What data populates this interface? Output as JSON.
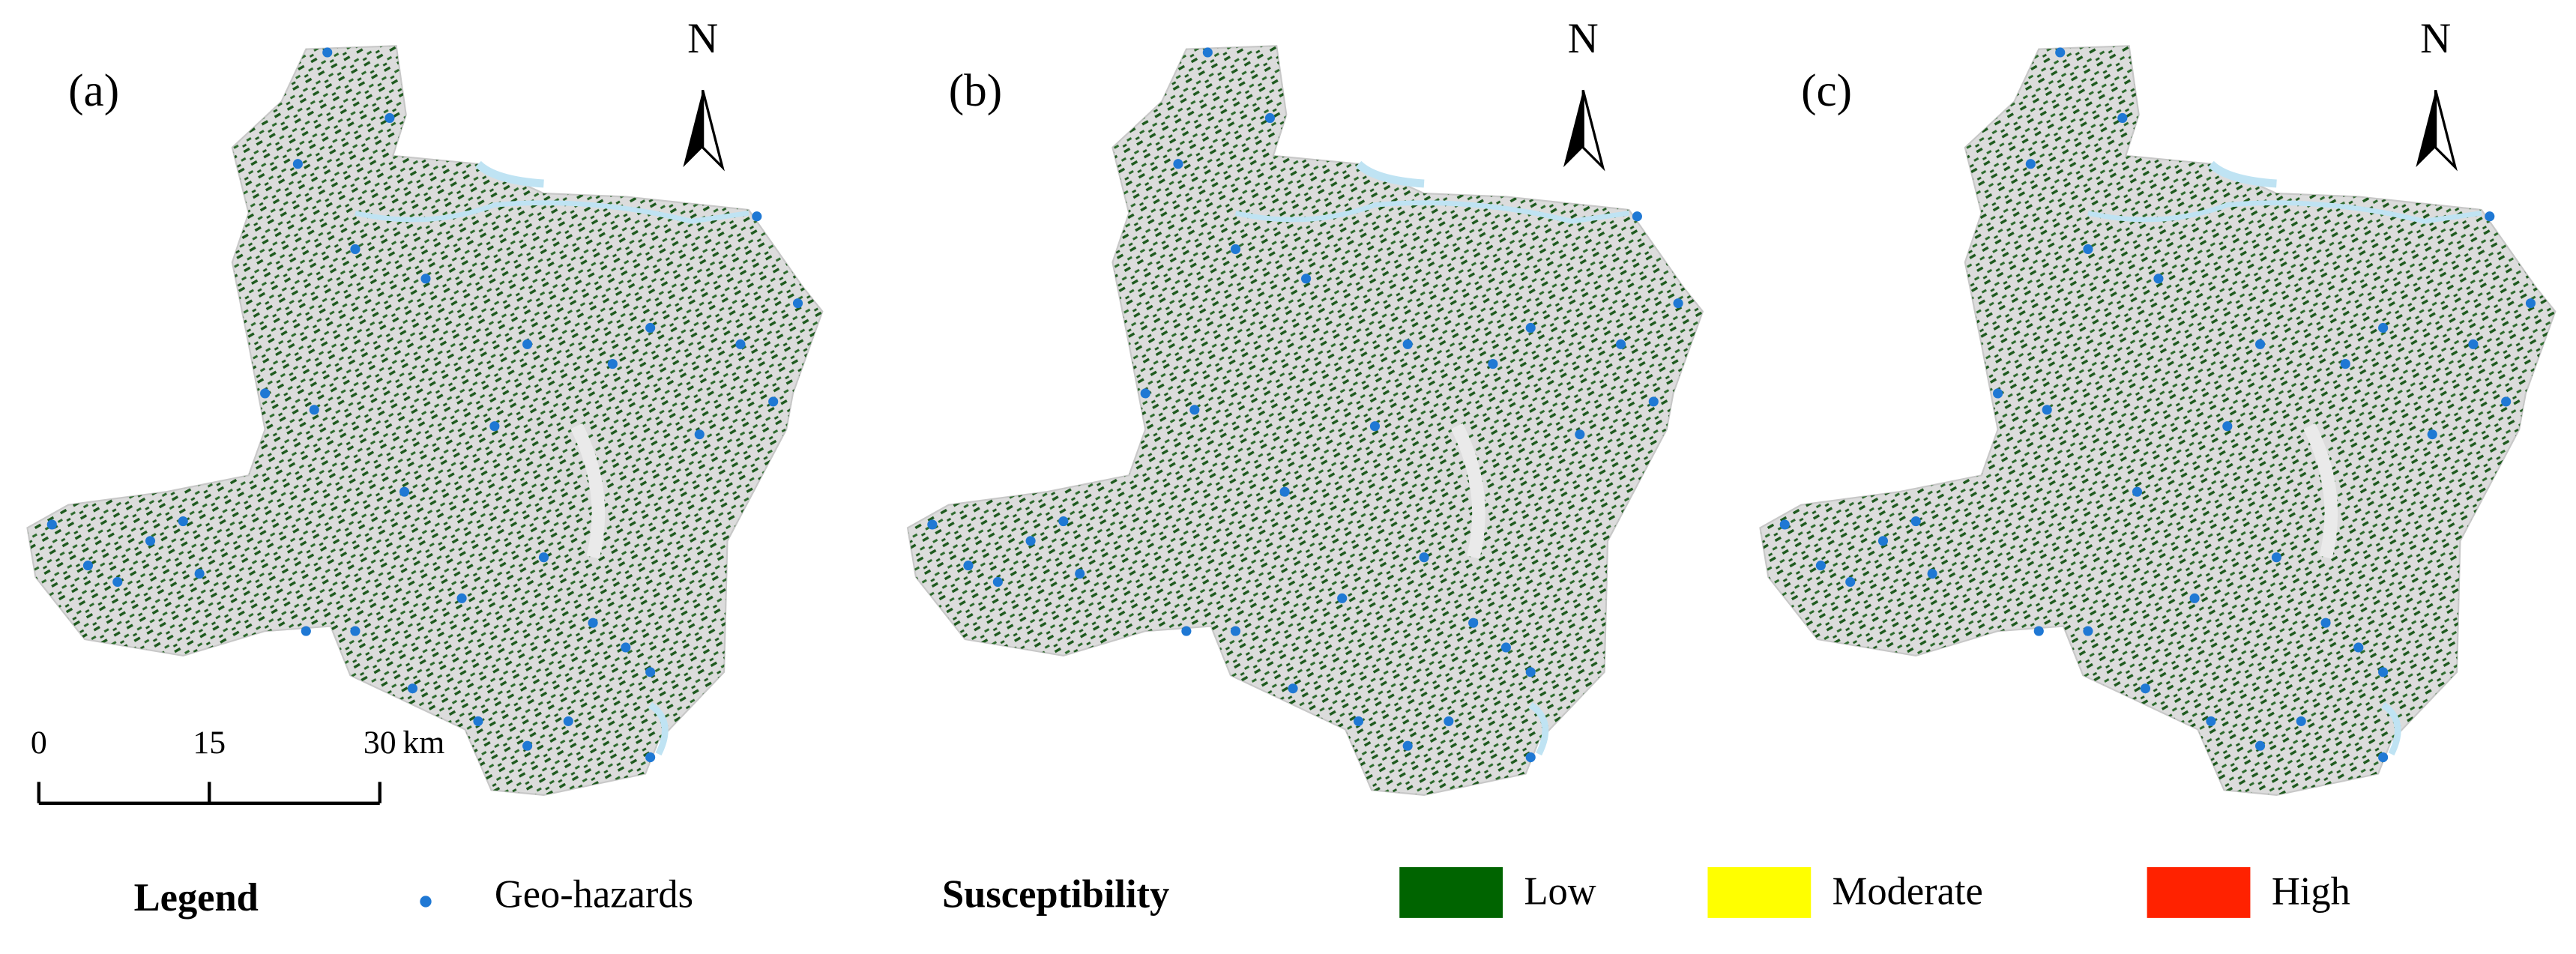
{
  "panels": [
    {
      "label": "(a)"
    },
    {
      "label": "(b)"
    },
    {
      "label": "(c)"
    }
  ],
  "north_label": "N",
  "scale_bar": {
    "ticks": [
      0,
      15,
      30
    ],
    "unit": "km"
  },
  "legend": {
    "title": "Legend",
    "point_label": "Geo-hazards",
    "susceptibility_title": "Susceptibility",
    "classes": [
      {
        "label": "Low",
        "color": "#006400"
      },
      {
        "label": "Moderate",
        "color": "#ffff00"
      },
      {
        "label": "High",
        "color": "#ff2200"
      }
    ]
  }
}
